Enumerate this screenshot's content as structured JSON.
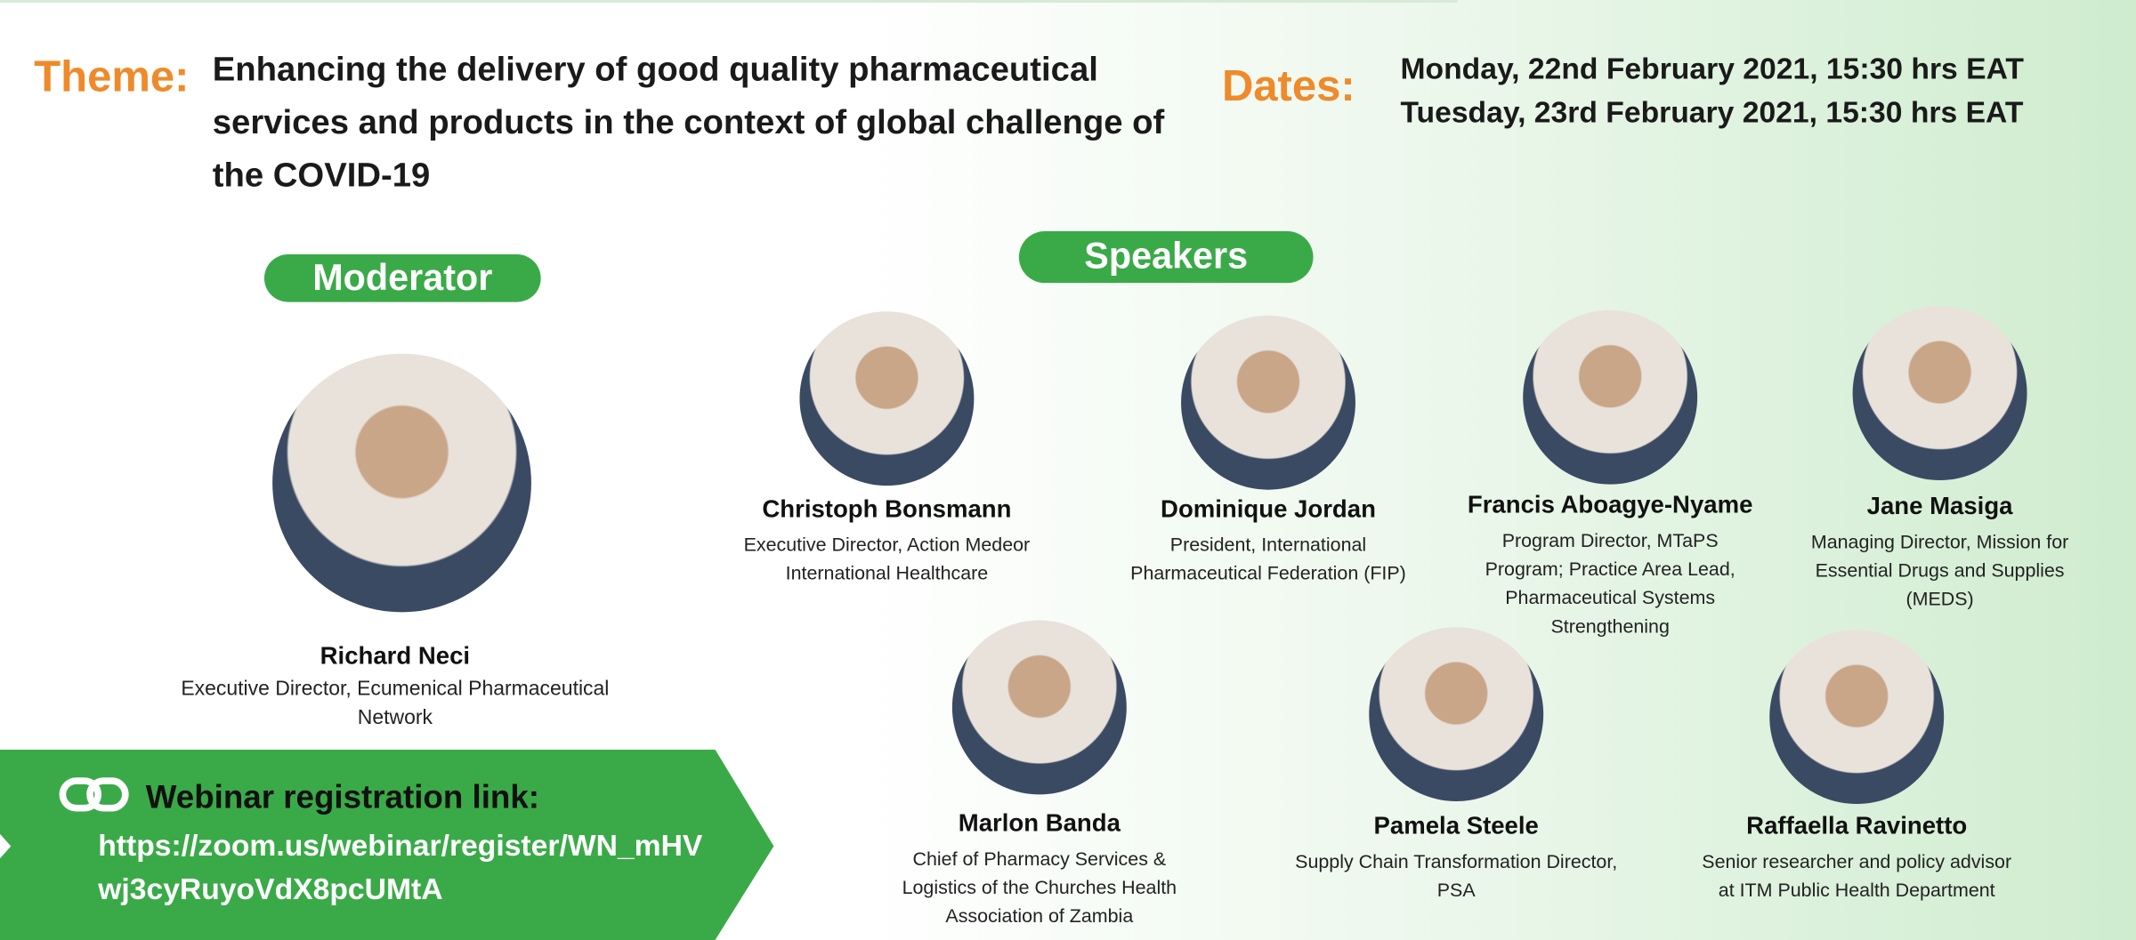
{
  "theme": {
    "label": "Theme:",
    "text": "Enhancing the delivery of good quality pharmaceutical services and products in the context of global challenge of the COVID-19"
  },
  "dates": {
    "label": "Dates:",
    "items": [
      "Monday, 22nd February 2021, 15:30 hrs  EAT",
      "Tuesday, 23rd February 2021, 15:30 hrs  EAT"
    ]
  },
  "moderator": {
    "heading": "Moderator",
    "name": "Richard Neci",
    "role": "Executive Director, Ecumenical Pharmaceutical Network"
  },
  "speakers": {
    "heading": "Speakers",
    "items": [
      {
        "name": "Christoph Bonsmann",
        "role": "Executive Director, Action Medeor International Healthcare"
      },
      {
        "name": "Dominique Jordan",
        "role": "President, International Pharmaceutical Federation (FIP)"
      },
      {
        "name": "Francis Aboagye-Nyame",
        "role": "Program Director, MTaPS Program; Practice Area Lead, Pharmaceutical Systems Strengthening"
      },
      {
        "name": "Jane Masiga",
        "role": "Managing Director, Mission for Essential Drugs and Supplies (MEDS)"
      },
      {
        "name": "Marlon Banda",
        "role": "Chief of Pharmacy Services & Logistics of the Churches Health Association of Zambia"
      },
      {
        "name": "Pamela Steele",
        "role": "Supply Chain Transformation Director, PSA"
      },
      {
        "name": "Raffaella Ravinetto",
        "role": "Senior researcher and policy advisor at ITM Public Health Department"
      }
    ]
  },
  "registration": {
    "label": "Webinar registration link:",
    "link": "https://zoom.us/webinar/register/WN_mHVwj3cyRuyoVdX8pcUMtA"
  }
}
